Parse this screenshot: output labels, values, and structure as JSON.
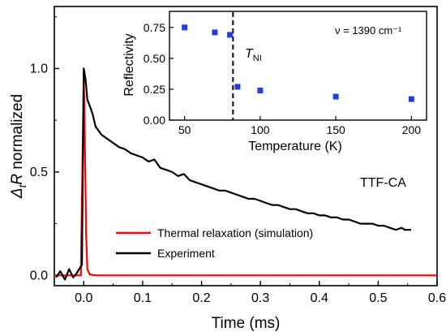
{
  "chart_data": [
    {
      "type": "line",
      "xlabel": "Time (ms)",
      "ylabel": "ΔtR normalized",
      "xlim": [
        -0.05,
        0.6
      ],
      "ylim": [
        -0.05,
        1.3
      ],
      "x_ticks": [
        "0.0",
        "0.1",
        "0.2",
        "0.3",
        "0.4",
        "0.5",
        "0.6"
      ],
      "y_ticks": [
        "0.0",
        "0.5",
        "1.0"
      ],
      "annotation": "TTF-CA",
      "legend": "bottom-center",
      "series": [
        {
          "name": "Thermal relaxation (simulation)",
          "color": "#ff0000",
          "x": [
            -0.05,
            -0.005,
            0.0,
            0.002,
            0.004,
            0.006,
            0.01,
            0.02,
            0.6
          ],
          "y": [
            0.0,
            0.0,
            0.98,
            0.6,
            0.2,
            0.03,
            0.005,
            0.0,
            0.0
          ]
        },
        {
          "name": "Experiment",
          "color": "#000000",
          "x": [
            -0.047,
            -0.04,
            -0.032,
            -0.025,
            -0.018,
            -0.012,
            -0.008,
            -0.003,
            0.0,
            0.003,
            0.006,
            0.01,
            0.015,
            0.02,
            0.03,
            0.04,
            0.05,
            0.06,
            0.07,
            0.08,
            0.09,
            0.1,
            0.11,
            0.12,
            0.13,
            0.14,
            0.15,
            0.16,
            0.17,
            0.18,
            0.19,
            0.2,
            0.21,
            0.22,
            0.23,
            0.24,
            0.25,
            0.26,
            0.27,
            0.28,
            0.29,
            0.3,
            0.31,
            0.32,
            0.33,
            0.34,
            0.35,
            0.36,
            0.37,
            0.38,
            0.39,
            0.4,
            0.41,
            0.42,
            0.43,
            0.44,
            0.45,
            0.46,
            0.47,
            0.48,
            0.49,
            0.5,
            0.51,
            0.52,
            0.53,
            0.54,
            0.545,
            0.556
          ],
          "y": [
            -0.01,
            0.02,
            -0.02,
            0.03,
            -0.01,
            0.01,
            0.03,
            0.05,
            1.0,
            0.95,
            0.85,
            0.82,
            0.78,
            0.72,
            0.68,
            0.66,
            0.64,
            0.62,
            0.61,
            0.59,
            0.58,
            0.57,
            0.55,
            0.56,
            0.52,
            0.51,
            0.5,
            0.48,
            0.49,
            0.46,
            0.45,
            0.44,
            0.43,
            0.42,
            0.41,
            0.41,
            0.4,
            0.39,
            0.38,
            0.37,
            0.37,
            0.36,
            0.35,
            0.34,
            0.34,
            0.33,
            0.32,
            0.32,
            0.31,
            0.3,
            0.3,
            0.29,
            0.29,
            0.28,
            0.28,
            0.27,
            0.27,
            0.26,
            0.25,
            0.25,
            0.25,
            0.24,
            0.24,
            0.23,
            0.22,
            0.23,
            0.22,
            0.22
          ]
        }
      ]
    },
    {
      "type": "scatter",
      "xlabel": "Temperature (K)",
      "ylabel": "Reflectivity",
      "xlim": [
        40,
        210
      ],
      "ylim": [
        0.0,
        0.88
      ],
      "x_ticks": [
        "50",
        "100",
        "150",
        "200"
      ],
      "y_ticks": [
        "0.00",
        "0.25",
        "0.50",
        "0.75"
      ],
      "annotation": "ν = 1390 cm⁻¹",
      "marker_label": "TNI",
      "marker_x": 82,
      "series": [
        {
          "color": "#1f3fe0",
          "x": [
            50,
            70,
            80,
            85,
            100,
            150,
            200
          ],
          "y": [
            0.75,
            0.71,
            0.69,
            0.27,
            0.24,
            0.19,
            0.17
          ]
        }
      ]
    }
  ],
  "text": {
    "main_xlabel": "Time (ms)",
    "main_ylabel_pre": "Δ",
    "main_ylabel_sub": "t",
    "main_ylabel_R": "R",
    "main_ylabel_post": " normalized",
    "sample_tag": "TTF-CA",
    "legend_red": "Thermal relaxation (simulation)",
    "legend_black": "Experiment",
    "inset_xlabel": "Temperature (K)",
    "inset_ylabel": "Reflectivity",
    "inset_note": "ν = 1390 cm⁻¹",
    "marker_T": "T",
    "marker_sub": "NI"
  }
}
